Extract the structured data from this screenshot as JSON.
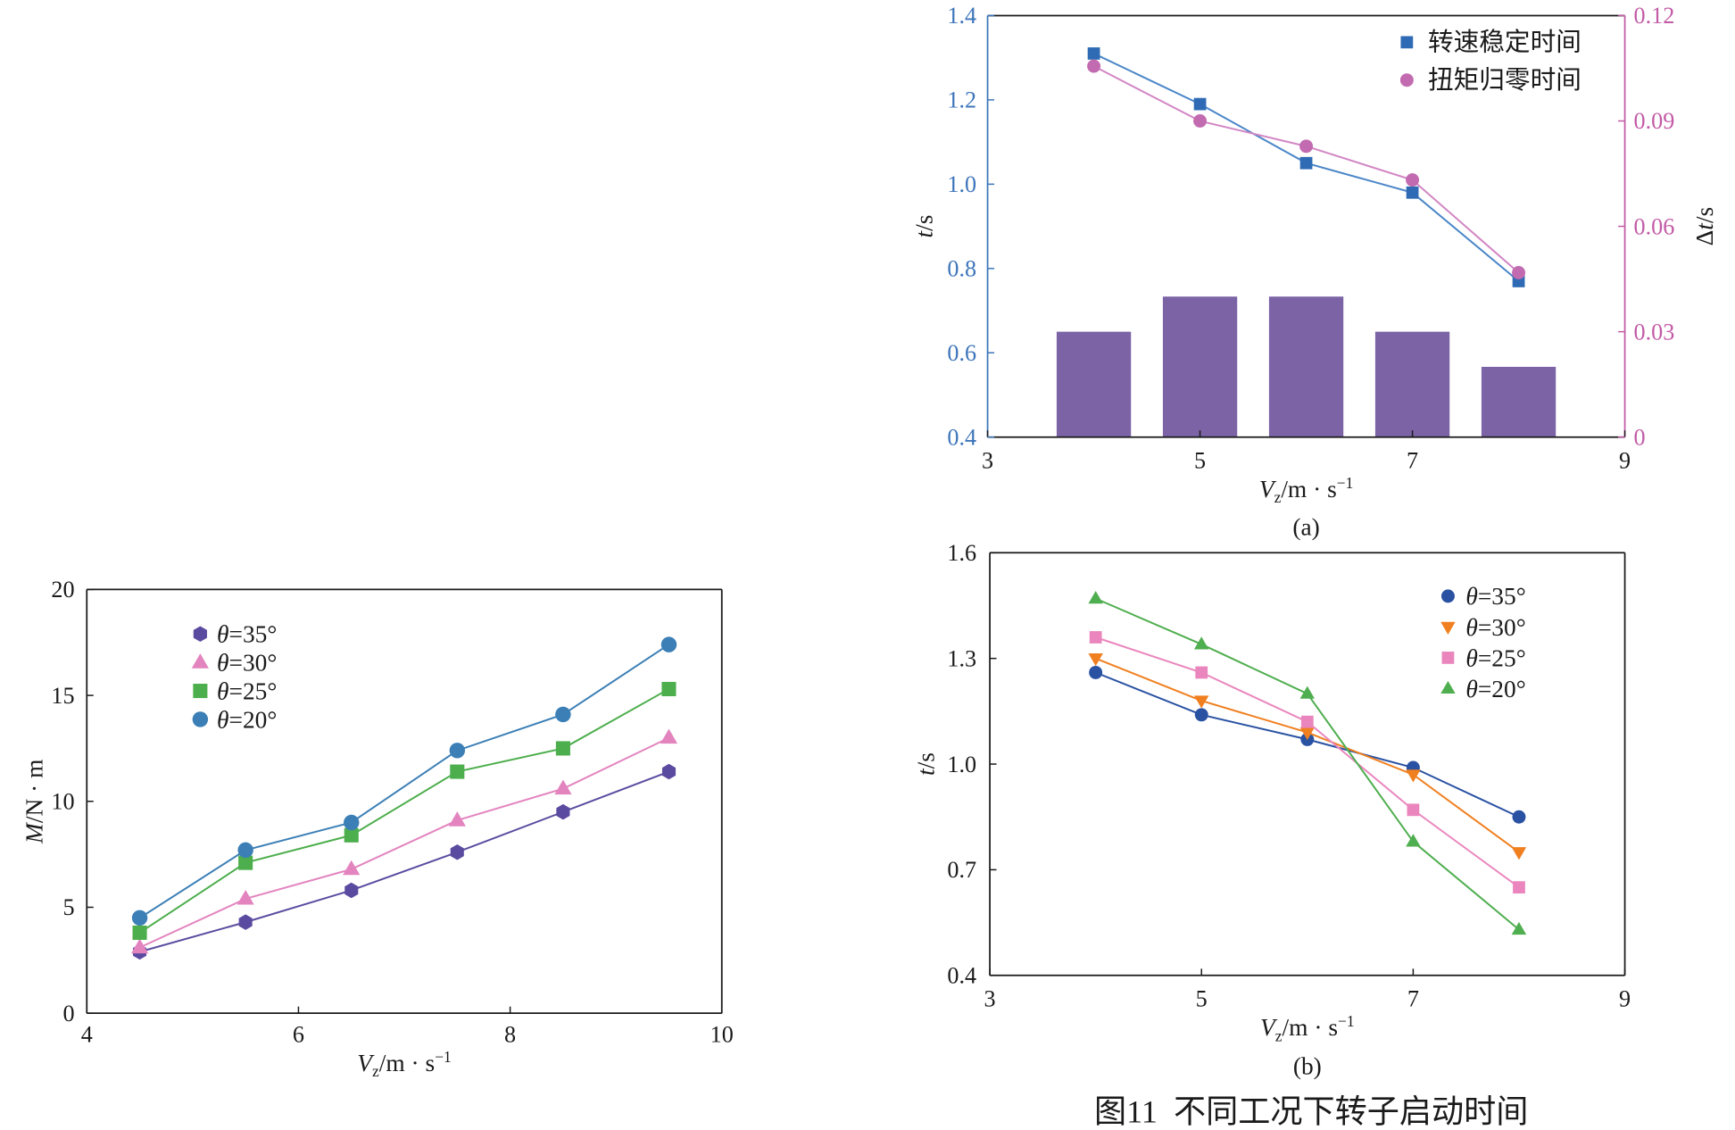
{
  "figure": {
    "caption": "图11  不同工况下转子启动时间"
  },
  "chart_data": [
    {
      "type": "line",
      "xlabel": {
        "var": "V",
        "sub": "z",
        "unit": "/m · s",
        "sup": "−1"
      },
      "ylabel": {
        "var": "M",
        "unit": "/N · m"
      },
      "xlim": [
        4,
        10
      ],
      "ylim": [
        0,
        20
      ],
      "xticks": [
        "4",
        "6",
        "8",
        "10"
      ],
      "yticks": [
        "0",
        "5",
        "10",
        "15",
        "20"
      ],
      "grid": false,
      "legend_position": "top-left",
      "x": [
        4.5,
        5.5,
        6.5,
        7.5,
        8.5,
        9.5
      ],
      "series": [
        {
          "name": {
            "symbol": "θ",
            "value": "=35°"
          },
          "marker": "hexagon",
          "color": "#5b4ba0",
          "values": [
            2.9,
            4.3,
            5.8,
            7.6,
            9.5,
            11.4
          ]
        },
        {
          "name": {
            "symbol": "θ",
            "value": "=30°"
          },
          "marker": "triangle-up",
          "color": "#e384bf",
          "values": [
            3.1,
            5.4,
            6.8,
            9.1,
            10.6,
            13.0
          ]
        },
        {
          "name": {
            "symbol": "θ",
            "value": "=25°"
          },
          "marker": "square",
          "color": "#4cae4c",
          "values": [
            3.8,
            7.1,
            8.4,
            11.4,
            12.5,
            15.3
          ]
        },
        {
          "name": {
            "symbol": "θ",
            "value": "=20°"
          },
          "marker": "circle",
          "color": "#3b7fb6",
          "values": [
            4.5,
            7.7,
            9.0,
            12.4,
            14.1,
            17.4
          ]
        }
      ]
    },
    {
      "type": "line",
      "panel_label": "(a)",
      "xlabel": {
        "var": "V",
        "sub": "z",
        "unit": "/m · s",
        "sup": "−1"
      },
      "ylabel": {
        "var": "t",
        "unit": "/s"
      },
      "y2label": {
        "prefix": "Δ",
        "var": "t",
        "unit": "/s"
      },
      "xlim": [
        3,
        9
      ],
      "ylim": [
        0.4,
        1.4
      ],
      "y2lim": [
        0,
        0.12
      ],
      "xticks": [
        "3",
        "5",
        "7",
        "9"
      ],
      "yticks": [
        "0.4",
        "0.6",
        "0.8",
        "1.0",
        "1.2",
        "1.4"
      ],
      "y2ticks": [
        "0",
        "0.03",
        "0.06",
        "0.09",
        "0.12"
      ],
      "left_axis_color": "#3d75ba",
      "right_axis_color": "#c25aa6",
      "grid": false,
      "legend_position": "top-right",
      "x": [
        4,
        5,
        6,
        7,
        8
      ],
      "series": [
        {
          "name": "转速稳定时间",
          "marker": "square",
          "color": "#2f6bb4",
          "line_color": "#4a86c8",
          "values": [
            1.31,
            1.19,
            1.05,
            0.98,
            0.77
          ]
        },
        {
          "name": "扭矩归零时间",
          "marker": "circle",
          "color": "#c26bb0",
          "line_color": "#d286c4",
          "values": [
            1.28,
            1.15,
            1.09,
            1.01,
            0.79
          ]
        }
      ],
      "bars": {
        "color": "#7b63a6",
        "values": [
          0.03,
          0.04,
          0.04,
          0.03,
          0.02
        ]
      }
    },
    {
      "type": "line",
      "panel_label": "(b)",
      "xlabel": {
        "var": "V",
        "sub": "z",
        "unit": "/m · s",
        "sup": "−1"
      },
      "ylabel": {
        "var": "t",
        "unit": "/s"
      },
      "xlim": [
        3,
        9
      ],
      "ylim": [
        0.4,
        1.6
      ],
      "xticks": [
        "3",
        "5",
        "7",
        "9"
      ],
      "yticks": [
        "0.4",
        "0.7",
        "1.0",
        "1.3",
        "1.6"
      ],
      "grid": false,
      "legend_position": "top-right",
      "x": [
        4,
        5,
        6,
        7,
        8
      ],
      "series": [
        {
          "name": {
            "symbol": "θ",
            "value": "=35°"
          },
          "marker": "circle",
          "color": "#2a52a3",
          "values": [
            1.26,
            1.14,
            1.07,
            0.99,
            0.85
          ]
        },
        {
          "name": {
            "symbol": "θ",
            "value": "=30°"
          },
          "marker": "triangle-down",
          "color": "#f07f1f",
          "values": [
            1.3,
            1.18,
            1.09,
            0.97,
            0.75
          ]
        },
        {
          "name": {
            "symbol": "θ",
            "value": "=25°"
          },
          "marker": "square",
          "color": "#ea86bd",
          "values": [
            1.36,
            1.26,
            1.12,
            0.87,
            0.65
          ]
        },
        {
          "name": {
            "symbol": "θ",
            "value": "=20°"
          },
          "marker": "triangle-up",
          "color": "#4fae4f",
          "values": [
            1.47,
            1.34,
            1.2,
            0.78,
            0.53
          ]
        }
      ]
    }
  ]
}
